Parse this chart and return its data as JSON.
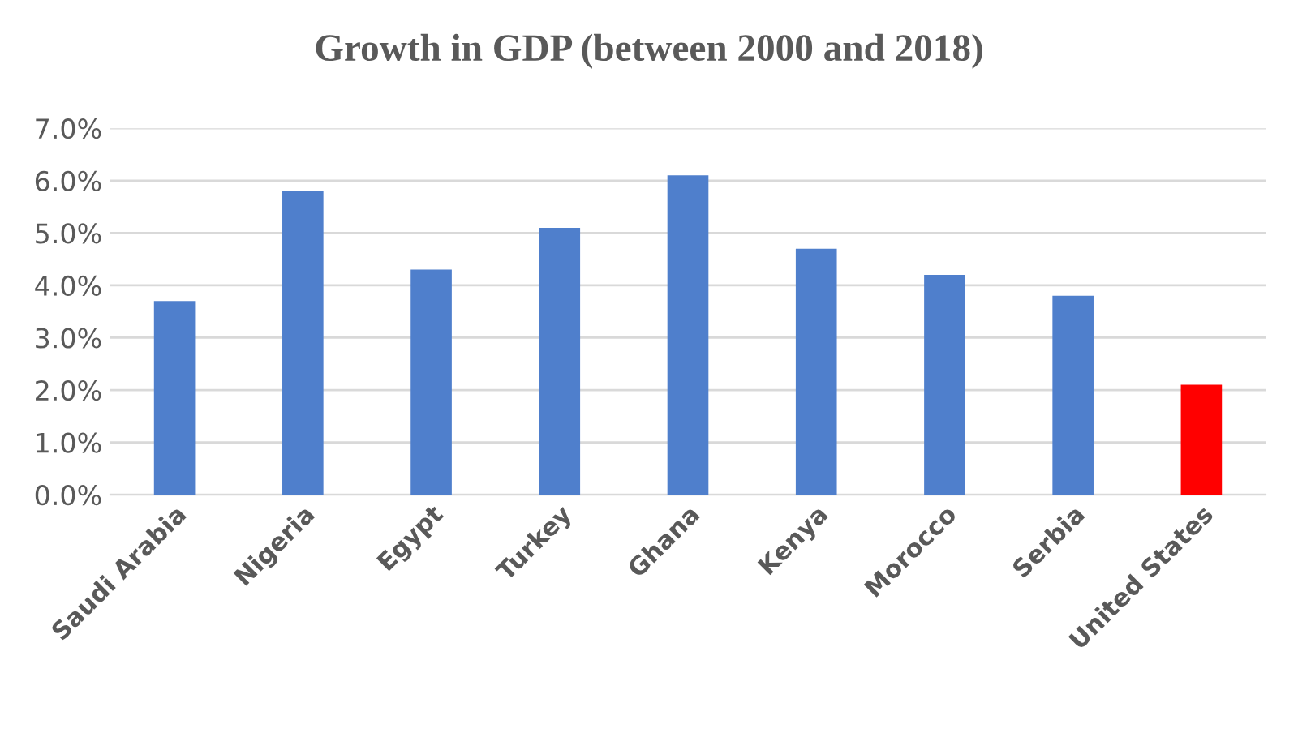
{
  "chart_data": {
    "type": "bar",
    "title": "Growth in GDP (between 2000 and 2018)",
    "categories": [
      "Saudi Arabia",
      "Nigeria",
      "Egypt",
      "Turkey",
      "Ghana",
      "Kenya",
      "Morocco",
      "Serbia",
      "United States"
    ],
    "values": [
      3.7,
      5.8,
      4.3,
      5.1,
      6.1,
      4.7,
      4.2,
      3.8,
      2.1
    ],
    "colors": [
      "#4f7fcc",
      "#4f7fcc",
      "#4f7fcc",
      "#4f7fcc",
      "#4f7fcc",
      "#4f7fcc",
      "#4f7fcc",
      "#4f7fcc",
      "#ff0000"
    ],
    "ylim": [
      0,
      7
    ],
    "yticks": [
      {
        "value": 0,
        "label": "0.0%"
      },
      {
        "value": 1,
        "label": "1.0%"
      },
      {
        "value": 2,
        "label": "2.0%"
      },
      {
        "value": 3,
        "label": "3.0%"
      },
      {
        "value": 4,
        "label": "4.0%"
      },
      {
        "value": 5,
        "label": "5.0%"
      },
      {
        "value": 6,
        "label": "6.0%"
      },
      {
        "value": 7,
        "label": "7.0%"
      }
    ],
    "grid": "y"
  }
}
